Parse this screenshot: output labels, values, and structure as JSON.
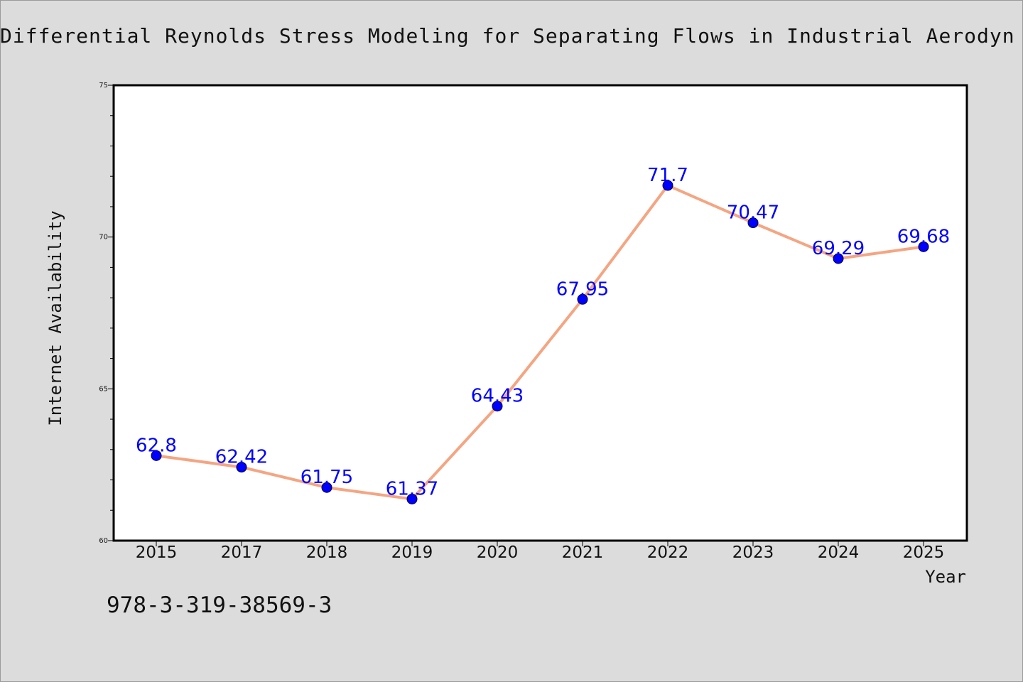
{
  "page": {
    "background": "#dcdcdc",
    "note": "978-3-319-38569-3"
  },
  "chart_data": {
    "type": "line",
    "title": "Differential Reynolds Stress Modeling for Separating Flows in Industrial Aerodyn",
    "xlabel": "Year",
    "ylabel": "Internet Availability",
    "categories": [
      "2015",
      "2017",
      "2018",
      "2019",
      "2020",
      "2021",
      "2022",
      "2023",
      "2024",
      "2025"
    ],
    "series": [
      {
        "values": [
          62.8,
          62.42,
          61.75,
          61.37,
          64.43,
          67.95,
          71.7,
          70.47,
          69.29,
          69.68
        ],
        "labels": [
          "62.8",
          "62.42",
          "61.75",
          "61.37",
          "64.43",
          "67.95",
          "71.7",
          "70.47",
          "69.29",
          "69.68"
        ],
        "line_color": "#f4a582",
        "marker_color": "#0000ff"
      }
    ],
    "ylim": [
      60,
      75
    ],
    "yticks": [
      "60",
      "65",
      "70",
      "75"
    ],
    "grid": false,
    "legend": "none",
    "label_color": "#0000ff"
  }
}
